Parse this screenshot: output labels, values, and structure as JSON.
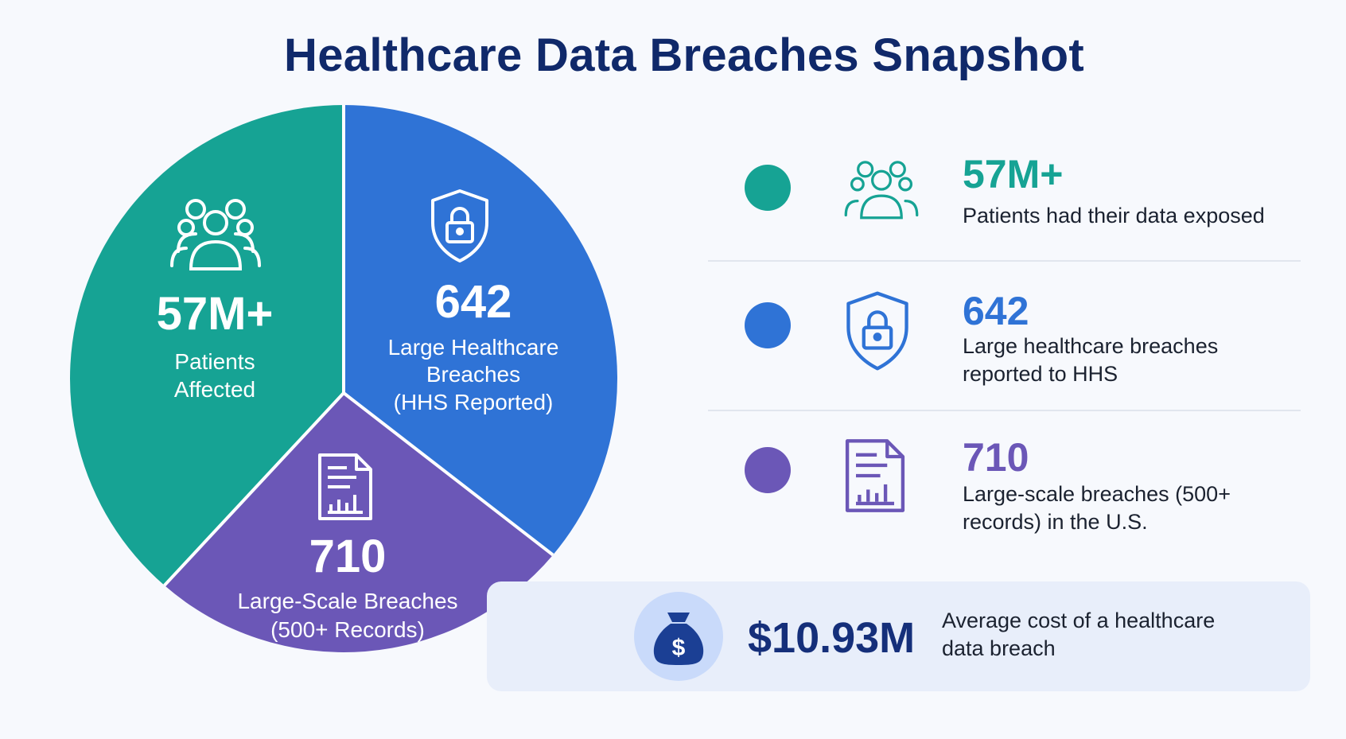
{
  "title": "Healthcare Data Breaches Snapshot",
  "colors": {
    "teal": "#16a394",
    "blue": "#2f73d6",
    "purple": "#6b57b7",
    "title": "#10296a",
    "cost": "#152f7a"
  },
  "chart_data": {
    "type": "pie",
    "title": "Healthcare Data Breaches Snapshot",
    "slices": [
      {
        "value_label": "57M+",
        "label": "Patients\nAffected",
        "color": "#16a394",
        "icon": "people-icon"
      },
      {
        "value_label": "642",
        "label": "Large Healthcare\nBreaches\n(HHS Reported)",
        "color": "#2f73d6",
        "icon": "shield-lock-icon"
      },
      {
        "value_label": "710",
        "label": "Large-Scale Breaches\n(500+ Records)",
        "color": "#6b57b7",
        "icon": "document-chart-icon"
      }
    ]
  },
  "stats": [
    {
      "value": "57M+",
      "description": "Patients had their data exposed",
      "color": "#16a394",
      "icon": "people-icon"
    },
    {
      "value": "642",
      "description": "Large healthcare breaches\nreported to HHS",
      "color": "#2f73d6",
      "icon": "shield-lock-icon"
    },
    {
      "value": "710",
      "description": "Large-scale breaches (500+\nrecords) in the U.S.",
      "color": "#6b57b7",
      "icon": "document-chart-icon"
    }
  ],
  "cost": {
    "value": "$10.93M",
    "description": "Average cost of a healthcare\ndata breach",
    "icon": "money-bag-icon"
  }
}
